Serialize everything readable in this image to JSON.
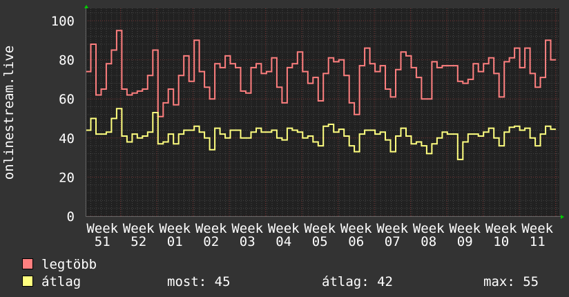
{
  "chart_data": {
    "type": "line",
    "ylabel": "onlinestream.live",
    "ylim": [
      0,
      100
    ],
    "yticks": [
      "0",
      "20",
      "40",
      "60",
      "80",
      "100"
    ],
    "xtick_labels": [
      "Week 51",
      "Week 52",
      "Week 01",
      "Week 02",
      "Week 03",
      "Week 04",
      "Week 05",
      "Week 06",
      "Week 07",
      "Week 08",
      "Week 09",
      "Week 10",
      "Week 11"
    ],
    "grid": true,
    "background": "#212121",
    "series": [
      {
        "name": "legtöbb",
        "color": "#ff7f7f",
        "values": [
          74,
          88,
          62,
          65,
          78,
          85,
          95,
          65,
          62,
          63,
          64,
          65,
          72,
          85,
          51,
          58,
          65,
          57,
          72,
          82,
          69,
          90,
          74,
          66,
          60,
          78,
          76,
          82,
          78,
          76,
          64,
          63,
          76,
          78,
          73,
          74,
          81,
          66,
          58,
          76,
          78,
          84,
          74,
          68,
          71,
          59,
          73,
          81,
          79,
          80,
          72,
          58,
          52,
          77,
          86,
          78,
          74,
          77,
          65,
          61,
          75,
          84,
          82,
          76,
          71,
          60,
          60,
          79,
          76,
          77,
          77,
          77,
          69,
          68,
          70,
          78,
          74,
          78,
          81,
          73,
          61,
          79,
          81,
          86,
          76,
          86,
          73,
          66,
          71,
          90,
          80
        ]
      },
      {
        "name": "átlag",
        "color": "#ffff7f",
        "values": [
          44,
          50,
          42,
          42,
          43,
          50,
          55,
          41,
          38,
          42,
          40,
          41,
          43,
          53,
          37,
          38,
          42,
          37,
          42,
          44,
          44,
          46,
          43,
          40,
          34,
          45,
          42,
          40,
          44,
          44,
          40,
          40,
          43,
          45,
          43,
          43,
          44,
          40,
          39,
          45,
          44,
          43,
          40,
          41,
          38,
          36,
          46,
          47,
          43,
          44.5,
          41,
          36,
          33,
          42,
          44,
          44,
          42,
          43,
          39,
          33,
          41,
          45,
          41,
          37,
          38,
          36,
          32,
          37,
          40,
          43,
          42,
          42,
          29,
          38,
          42,
          42,
          41,
          43,
          45,
          40,
          36,
          43,
          45.5,
          46,
          44,
          45,
          40,
          36,
          42,
          46,
          44.5
        ]
      }
    ]
  },
  "legend": {
    "items": [
      {
        "label": "legtöbb",
        "color": "#ff7f7f"
      },
      {
        "label": "átlag",
        "color": "#ffff7f"
      }
    ],
    "stats": {
      "now": "most: 45",
      "avg": "átlag: 42",
      "max": "max: 55"
    }
  }
}
